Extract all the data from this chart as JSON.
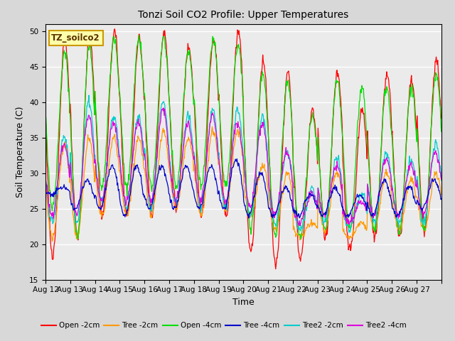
{
  "title": "Tonzi Soil CO2 Profile: Upper Temperatures",
  "xlabel": "Time",
  "ylabel": "Soil Temperature (C)",
  "ylim": [
    15,
    51
  ],
  "yticks": [
    15,
    20,
    25,
    30,
    35,
    40,
    45,
    50
  ],
  "annotation": "TZ_soilco2",
  "fig_bg_color": "#d8d8d8",
  "plot_bg_color": "#ebebeb",
  "grid_color": "#ffffff",
  "series_colors": {
    "Open -2cm": "#ff0000",
    "Tree -2cm": "#ff9900",
    "Open -4cm": "#00dd00",
    "Tree -4cm": "#0000cc",
    "Tree2 -2cm": "#00cccc",
    "Tree2 -4cm": "#dd00dd"
  },
  "x_tick_labels": [
    "Aug 12",
    "Aug 13",
    "Aug 14",
    "Aug 15",
    "Aug 16",
    "Aug 17",
    "Aug 18",
    "Aug 19",
    "Aug 20",
    "Aug 21",
    "Aug 22",
    "Aug 23",
    "Aug 24",
    "Aug 25",
    "Aug 26",
    "Aug 27"
  ],
  "n_days": 16
}
